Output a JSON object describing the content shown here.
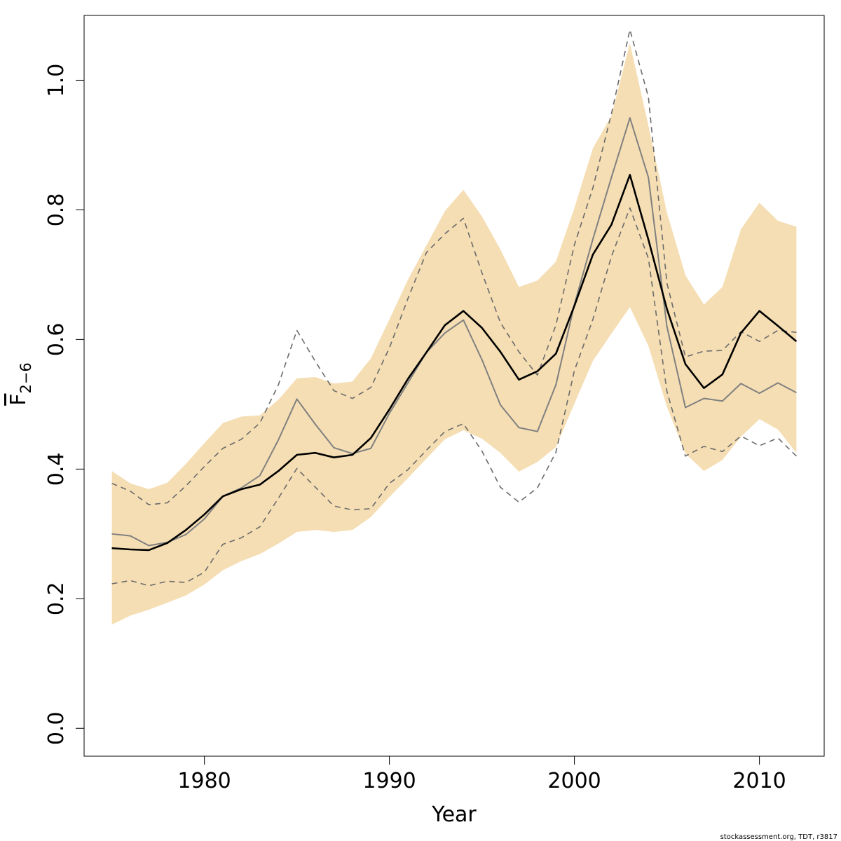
{
  "chart_data": {
    "type": "line",
    "xlabel": "Year",
    "ylabel_main": "F",
    "ylabel_sub": "2−6",
    "xlim": [
      1973.5,
      2013.5
    ],
    "ylim": [
      -0.043,
      1.1
    ],
    "x_ticks": [
      1980,
      1990,
      2000,
      2010
    ],
    "x_tick_labels": [
      "1980",
      "1990",
      "2000",
      "2010"
    ],
    "y_ticks": [
      0.0,
      0.2,
      0.4,
      0.6,
      0.8,
      1.0
    ],
    "y_tick_labels": [
      "0.0",
      "0.2",
      "0.4",
      "0.6",
      "0.8",
      "1.0"
    ],
    "grid": false,
    "colors": {
      "band": "#f5deb3",
      "main": "#000000",
      "alt": "#808080",
      "dashed": "#6b6b6b"
    },
    "x": [
      1975,
      1976,
      1977,
      1978,
      1979,
      1980,
      1981,
      1982,
      1983,
      1984,
      1985,
      1986,
      1987,
      1988,
      1989,
      1990,
      1991,
      1992,
      1993,
      1994,
      1995,
      1996,
      1997,
      1998,
      1999,
      2000,
      2001,
      2002,
      2003,
      2004,
      2005,
      2006,
      2007,
      2008,
      2009,
      2010,
      2011,
      2012
    ],
    "series": [
      {
        "role": "band-upper",
        "values": [
          0.397,
          0.378,
          0.369,
          0.379,
          0.408,
          0.44,
          0.471,
          0.481,
          0.483,
          0.507,
          0.54,
          0.542,
          0.532,
          0.535,
          0.571,
          0.631,
          0.692,
          0.745,
          0.798,
          0.831,
          0.79,
          0.739,
          0.681,
          0.691,
          0.72,
          0.803,
          0.895,
          0.945,
          1.057,
          0.93,
          0.796,
          0.699,
          0.654,
          0.681,
          0.77,
          0.811,
          0.783,
          0.774
        ]
      },
      {
        "role": "band-lower",
        "values": [
          0.16,
          0.174,
          0.183,
          0.194,
          0.205,
          0.222,
          0.244,
          0.258,
          0.269,
          0.285,
          0.303,
          0.306,
          0.303,
          0.306,
          0.326,
          0.357,
          0.386,
          0.416,
          0.446,
          0.46,
          0.447,
          0.425,
          0.396,
          0.411,
          0.434,
          0.501,
          0.567,
          0.609,
          0.65,
          0.59,
          0.496,
          0.424,
          0.397,
          0.414,
          0.45,
          0.477,
          0.461,
          0.425
        ]
      },
      {
        "role": "main",
        "values": [
          0.278,
          0.276,
          0.275,
          0.286,
          0.306,
          0.33,
          0.358,
          0.369,
          0.376,
          0.397,
          0.422,
          0.425,
          0.418,
          0.422,
          0.448,
          0.492,
          0.539,
          0.58,
          0.622,
          0.644,
          0.618,
          0.581,
          0.538,
          0.551,
          0.578,
          0.652,
          0.731,
          0.777,
          0.854,
          0.754,
          0.647,
          0.562,
          0.525,
          0.546,
          0.61,
          0.644,
          0.621,
          0.597
        ]
      },
      {
        "role": "alt",
        "values": [
          0.3,
          0.297,
          0.282,
          0.287,
          0.299,
          0.323,
          0.358,
          0.371,
          0.39,
          0.445,
          0.508,
          0.469,
          0.433,
          0.424,
          0.432,
          0.486,
          0.533,
          0.58,
          0.61,
          0.63,
          0.569,
          0.499,
          0.464,
          0.458,
          0.53,
          0.654,
          0.755,
          0.85,
          0.942,
          0.85,
          0.62,
          0.495,
          0.509,
          0.505,
          0.532,
          0.517,
          0.533,
          0.518
        ]
      },
      {
        "role": "dashed-upper",
        "values": [
          0.378,
          0.366,
          0.345,
          0.348,
          0.374,
          0.404,
          0.432,
          0.446,
          0.471,
          0.53,
          0.614,
          0.566,
          0.521,
          0.509,
          0.526,
          0.587,
          0.663,
          0.734,
          0.763,
          0.787,
          0.703,
          0.626,
          0.581,
          0.545,
          0.622,
          0.746,
          0.834,
          0.948,
          1.078,
          0.974,
          0.687,
          0.573,
          0.582,
          0.583,
          0.612,
          0.597,
          0.614,
          0.611
        ]
      },
      {
        "role": "dashed-lower",
        "values": [
          0.223,
          0.228,
          0.22,
          0.227,
          0.225,
          0.241,
          0.284,
          0.294,
          0.311,
          0.355,
          0.401,
          0.372,
          0.343,
          0.337,
          0.339,
          0.378,
          0.399,
          0.429,
          0.458,
          0.47,
          0.428,
          0.372,
          0.349,
          0.371,
          0.426,
          0.552,
          0.631,
          0.728,
          0.803,
          0.725,
          0.52,
          0.42,
          0.435,
          0.427,
          0.451,
          0.436,
          0.448,
          0.42
        ]
      }
    ]
  },
  "credit": "stockassessment.org, TDT, r3817"
}
